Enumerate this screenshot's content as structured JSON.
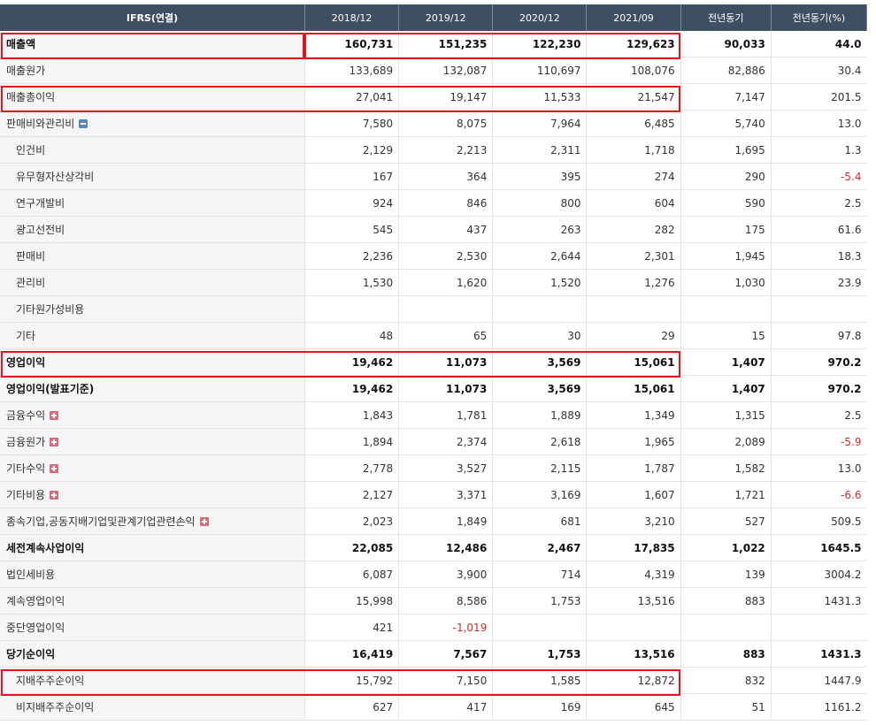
{
  "header": {
    "label": "IFRS(연결)",
    "periods": [
      "2018/12",
      "2019/12",
      "2020/12",
      "2021/09",
      "전년동기",
      "전년동기(%)"
    ]
  },
  "rows": [
    {
      "label": "매출액",
      "values": [
        "160,731",
        "151,235",
        "122,230",
        "129,623",
        "90,033",
        "44.0"
      ],
      "bold": true
    },
    {
      "label": "매출원가",
      "values": [
        "133,689",
        "132,087",
        "110,697",
        "108,076",
        "82,886",
        "30.4"
      ]
    },
    {
      "label": "매출총이익",
      "values": [
        "27,041",
        "19,147",
        "11,533",
        "21,547",
        "7,147",
        "201.5"
      ]
    },
    {
      "label": "판매비와관리비",
      "values": [
        "7,580",
        "8,075",
        "7,964",
        "6,485",
        "5,740",
        "13.0"
      ],
      "toggle": "minus"
    },
    {
      "label": "인건비",
      "values": [
        "2,129",
        "2,213",
        "2,311",
        "1,718",
        "1,695",
        "1.3"
      ],
      "indent": true
    },
    {
      "label": "유무형자산상각비",
      "values": [
        "167",
        "364",
        "395",
        "274",
        "290",
        "-5.4"
      ],
      "indent": true
    },
    {
      "label": "연구개발비",
      "values": [
        "924",
        "846",
        "800",
        "604",
        "590",
        "2.5"
      ],
      "indent": true
    },
    {
      "label": "광고선전비",
      "values": [
        "545",
        "437",
        "263",
        "282",
        "175",
        "61.6"
      ],
      "indent": true
    },
    {
      "label": "판매비",
      "values": [
        "2,236",
        "2,530",
        "2,644",
        "2,301",
        "1,945",
        "18.3"
      ],
      "indent": true
    },
    {
      "label": "관리비",
      "values": [
        "1,530",
        "1,620",
        "1,520",
        "1,276",
        "1,030",
        "23.9"
      ],
      "indent": true
    },
    {
      "label": "기타원가성비용",
      "values": [
        "",
        "",
        "",
        "",
        "",
        ""
      ],
      "indent": true
    },
    {
      "label": "기타",
      "values": [
        "48",
        "65",
        "30",
        "29",
        "15",
        "97.8"
      ],
      "indent": true
    },
    {
      "label": "영업이익",
      "values": [
        "19,462",
        "11,073",
        "3,569",
        "15,061",
        "1,407",
        "970.2"
      ],
      "bold": true
    },
    {
      "label": "영업이익(발표기준)",
      "values": [
        "19,462",
        "11,073",
        "3,569",
        "15,061",
        "1,407",
        "970.2"
      ],
      "bold": true
    },
    {
      "label": "금융수익",
      "values": [
        "1,843",
        "1,781",
        "1,889",
        "1,349",
        "1,315",
        "2.5"
      ],
      "toggle": "plus"
    },
    {
      "label": "금융원가",
      "values": [
        "1,894",
        "2,374",
        "2,618",
        "1,965",
        "2,089",
        "-5.9"
      ],
      "toggle": "plus"
    },
    {
      "label": "기타수익",
      "values": [
        "2,778",
        "3,527",
        "2,115",
        "1,787",
        "1,582",
        "13.0"
      ],
      "toggle": "plus"
    },
    {
      "label": "기타비용",
      "values": [
        "2,127",
        "3,371",
        "3,169",
        "1,607",
        "1,721",
        "-6.6"
      ],
      "toggle": "plus"
    },
    {
      "label": "종속기업,공동지배기업및관계기업관련손익",
      "values": [
        "2,023",
        "1,849",
        "681",
        "3,210",
        "527",
        "509.5"
      ],
      "toggle": "plus"
    },
    {
      "label": "세전계속사업이익",
      "values": [
        "22,085",
        "12,486",
        "2,467",
        "17,835",
        "1,022",
        "1645.5"
      ],
      "bold": true
    },
    {
      "label": "법인세비용",
      "values": [
        "6,087",
        "3,900",
        "714",
        "4,319",
        "139",
        "3004.2"
      ]
    },
    {
      "label": "계속영업이익",
      "values": [
        "15,998",
        "8,586",
        "1,753",
        "13,516",
        "883",
        "1431.3"
      ]
    },
    {
      "label": "중단영업이익",
      "values": [
        "421",
        "-1,019",
        "",
        "",
        "",
        ""
      ]
    },
    {
      "label": "당기순이익",
      "values": [
        "16,419",
        "7,567",
        "1,753",
        "13,516",
        "883",
        "1431.3"
      ],
      "bold": true
    },
    {
      "label": "지배주주순이익",
      "values": [
        "15,792",
        "7,150",
        "1,585",
        "12,872",
        "832",
        "1447.9"
      ],
      "indent": true
    },
    {
      "label": "비지배주주순이익",
      "values": [
        "627",
        "417",
        "169",
        "645",
        "51",
        "1161.2"
      ],
      "indent": true
    }
  ],
  "colors": {
    "header_bg": "#3f4f63",
    "label_bg": "#f5f5f7",
    "negative": "#d62a2a",
    "highlight": "#e0161f"
  }
}
